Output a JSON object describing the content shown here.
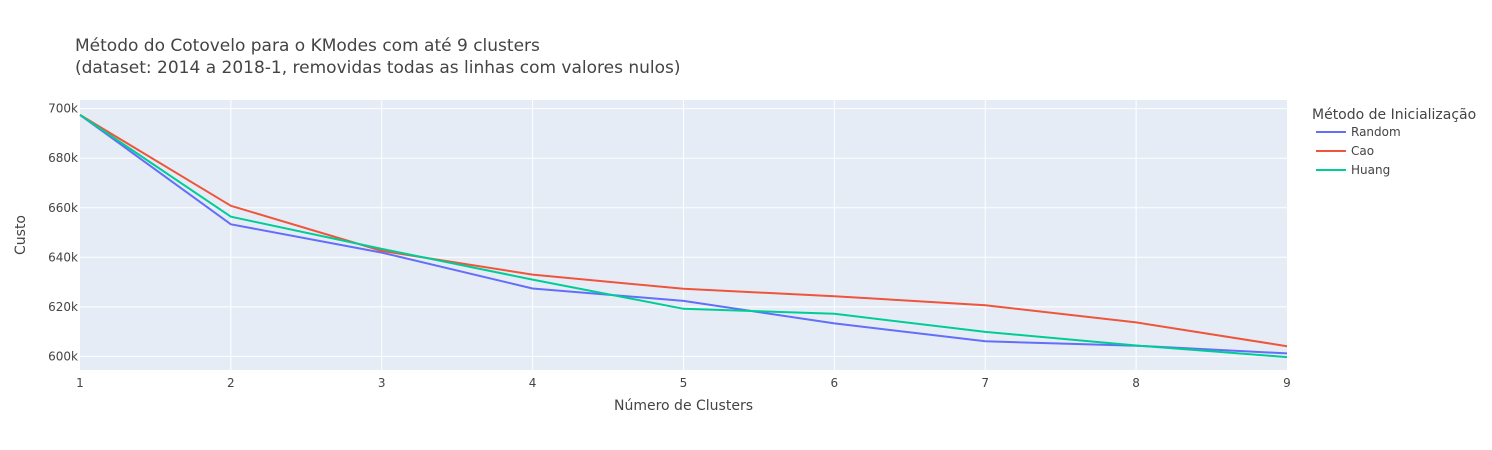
{
  "chart_data": {
    "type": "line",
    "title_line1": "Método do Cotovelo para o KModes com até 9 clusters",
    "title_line2": "(dataset: 2014 a 2018-1, removidas todas as linhas com valores nulos)",
    "xlabel": "Número de Clusters",
    "ylabel": "Custo",
    "x": [
      1,
      2,
      3,
      4,
      5,
      6,
      7,
      8,
      9
    ],
    "x_ticks": [
      1,
      2,
      3,
      4,
      5,
      6,
      7,
      8,
      9
    ],
    "x_tick_labels": [
      "1",
      "2",
      "3",
      "4",
      "5",
      "6",
      "7",
      "8",
      "9"
    ],
    "xlim": [
      1,
      9
    ],
    "y_ticks": [
      600000,
      620000,
      640000,
      660000,
      680000,
      700000
    ],
    "y_tick_labels": [
      "600k",
      "620k",
      "640k",
      "660k",
      "680k",
      "700k"
    ],
    "ylim": [
      594500,
      703500
    ],
    "legend_title": "Método de Inicialização",
    "legend_position": "top-right, outside plot",
    "grid": true,
    "series": [
      {
        "name": "Random",
        "color": "#636efa",
        "values": [
          697500,
          653300,
          641900,
          627400,
          622400,
          613300,
          606100,
          604300,
          601200
        ]
      },
      {
        "name": "Cao",
        "color": "#EF553B",
        "values": [
          697500,
          660800,
          642600,
          633000,
          627300,
          624300,
          620600,
          613700,
          604100
        ]
      },
      {
        "name": "Huang",
        "color": "#00cc96",
        "values": [
          697500,
          656400,
          643400,
          631000,
          619200,
          617200,
          609900,
          604400,
          599700
        ]
      }
    ]
  }
}
